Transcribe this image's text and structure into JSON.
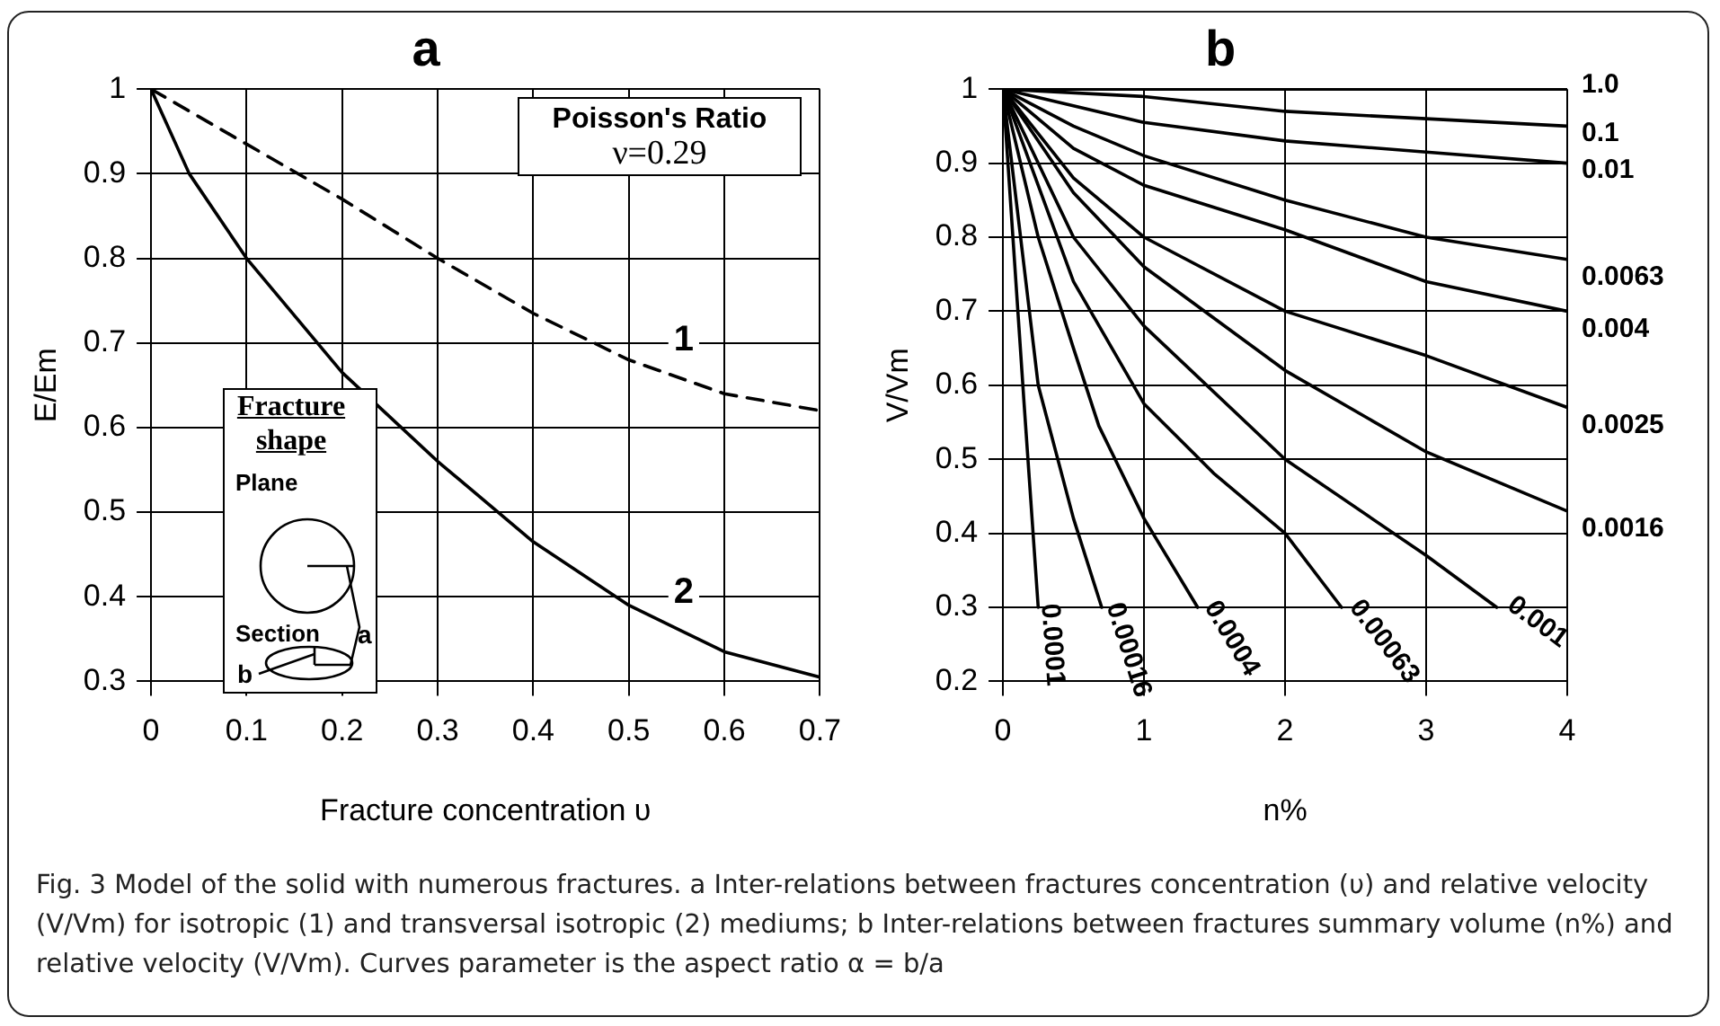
{
  "chart_data": [
    {
      "type": "line",
      "title": "a",
      "xlabel": "Fracture concentration υ",
      "ylabel": "E/Em",
      "xlim": [
        0,
        0.7
      ],
      "xticks": [
        0,
        0.1,
        0.2,
        0.3,
        0.4,
        0.5,
        0.6,
        0.7
      ],
      "ylim": [
        0.3,
        1
      ],
      "yticks": [
        0.3,
        0.4,
        0.5,
        0.6,
        0.7,
        0.8,
        0.9,
        1
      ],
      "grid": true,
      "legend": false,
      "marker": "none",
      "series": [
        {
          "name": "1",
          "color": "#000000",
          "line_style": "dashed",
          "x": [
            0,
            0.1,
            0.2,
            0.3,
            0.4,
            0.5,
            0.6,
            0.7
          ],
          "values": [
            1,
            0.935,
            0.87,
            0.8,
            0.735,
            0.68,
            0.64,
            0.62
          ]
        },
        {
          "name": "2",
          "color": "#000000",
          "line_style": "solid",
          "x": [
            0,
            0.04,
            0.1,
            0.2,
            0.3,
            0.4,
            0.5,
            0.6,
            0.7
          ],
          "values": [
            1,
            0.9,
            0.8,
            0.665,
            0.56,
            0.465,
            0.39,
            0.335,
            0.305
          ]
        }
      ],
      "annotations": [
        "Poisson's Ratio",
        "ν=0.29",
        "Fracture shape",
        "Plane",
        "Section",
        "a",
        "b",
        "Fig. 3  Model of the solid with numerous fractures. a Inter-relations between fractures concentration (υ) and relative velocity (V/Vm) for isotropic (1) and transversal isotropic (2) mediums; b Inter-relations between fractures summary volume (n%) and relative velocity (V/Vm). Curves parameter is the aspect ratio α = b/a"
      ]
    },
    {
      "type": "line",
      "title": "b",
      "xlabel": "n%",
      "ylabel": "V/Vm",
      "xlim": [
        0,
        4
      ],
      "xticks": [
        0,
        1,
        2,
        3,
        4
      ],
      "ylim": [
        0.2,
        1
      ],
      "yticks": [
        0.2,
        0.3,
        0.4,
        0.5,
        0.6,
        0.7,
        0.8,
        0.9,
        1
      ],
      "grid": true,
      "legend": false,
      "marker": "none",
      "series": [
        {
          "name": "1.0",
          "color": "#000000",
          "x": [
            0,
            4
          ],
          "values": [
            1,
            1
          ]
        },
        {
          "name": "0.1",
          "color": "#000000",
          "x": [
            0,
            1,
            2,
            3,
            4
          ],
          "values": [
            1,
            0.99,
            0.97,
            0.96,
            0.95
          ]
        },
        {
          "name": "0.01",
          "color": "#000000",
          "x": [
            0,
            1,
            2,
            3,
            4
          ],
          "values": [
            1,
            0.955,
            0.93,
            0.915,
            0.9
          ]
        },
        {
          "name": "0.0063",
          "color": "#000000",
          "x": [
            0,
            0.5,
            1,
            2,
            3,
            4
          ],
          "values": [
            1,
            0.95,
            0.91,
            0.85,
            0.8,
            0.77
          ]
        },
        {
          "name": "0.004",
          "color": "#000000",
          "x": [
            0,
            0.5,
            1,
            2,
            3,
            4
          ],
          "values": [
            1,
            0.92,
            0.87,
            0.81,
            0.74,
            0.7
          ]
        },
        {
          "name": "0.0025",
          "color": "#000000",
          "x": [
            0,
            0.5,
            1,
            2,
            3,
            4
          ],
          "values": [
            1,
            0.88,
            0.8,
            0.7,
            0.64,
            0.57
          ]
        },
        {
          "name": "0.0016",
          "color": "#000000",
          "x": [
            0,
            0.5,
            1,
            2,
            3,
            4
          ],
          "values": [
            1,
            0.86,
            0.76,
            0.62,
            0.51,
            0.43
          ]
        },
        {
          "name": "0.001",
          "color": "#000000",
          "x": [
            0,
            0.5,
            1,
            2,
            3,
            3.5
          ],
          "values": [
            1,
            0.8,
            0.68,
            0.5,
            0.37,
            0.3
          ]
        },
        {
          "name": "0.00063",
          "color": "#000000",
          "x": [
            0,
            0.5,
            1,
            1.5,
            2,
            2.4
          ],
          "values": [
            1,
            0.74,
            0.575,
            0.48,
            0.4,
            0.3
          ]
        },
        {
          "name": "0.0004",
          "color": "#000000",
          "x": [
            0,
            0.25,
            0.5,
            0.68,
            1,
            1.38
          ],
          "values": [
            1,
            0.8,
            0.65,
            0.545,
            0.42,
            0.3
          ]
        },
        {
          "name": "0.00016",
          "color": "#000000",
          "x": [
            0,
            0.25,
            0.5,
            0.7
          ],
          "values": [
            1,
            0.6,
            0.42,
            0.3
          ]
        },
        {
          "name": "0.0001",
          "color": "#000000",
          "x": [
            0,
            0.15,
            0.25
          ],
          "values": [
            1,
            0.575,
            0.3
          ]
        }
      ]
    }
  ]
}
